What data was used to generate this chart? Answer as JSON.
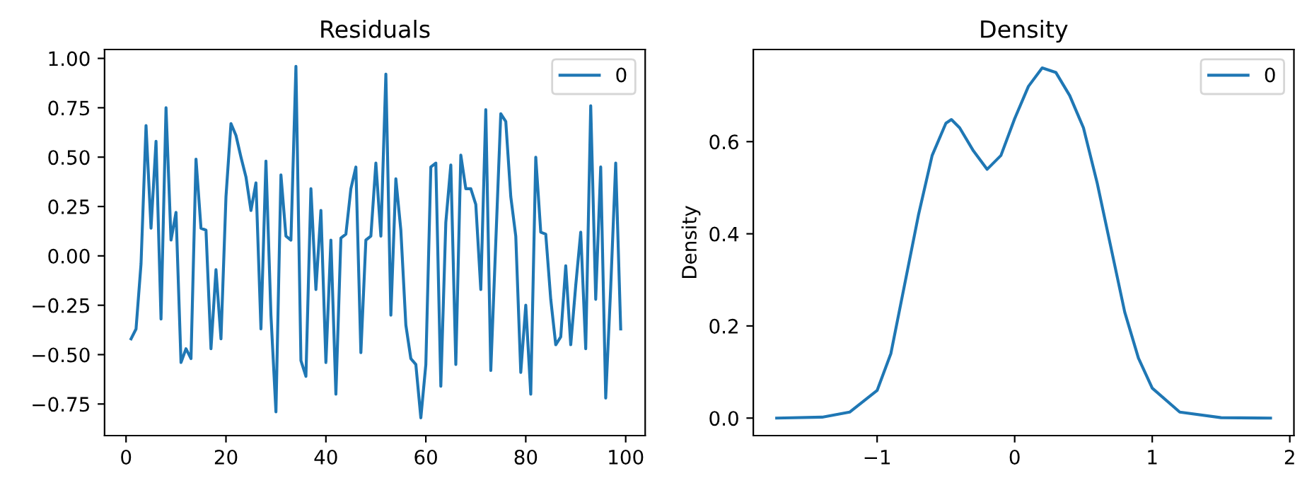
{
  "chart_data": [
    {
      "type": "line",
      "title": "Residuals",
      "legend": "top right",
      "grid": false,
      "x": [
        1,
        2,
        3,
        4,
        5,
        6,
        7,
        8,
        9,
        10,
        11,
        12,
        13,
        14,
        15,
        16,
        17,
        18,
        19,
        20,
        21,
        22,
        23,
        24,
        25,
        26,
        27,
        28,
        29,
        30,
        31,
        32,
        33,
        34,
        35,
        36,
        37,
        38,
        39,
        40,
        41,
        42,
        43,
        44,
        45,
        46,
        47,
        48,
        49,
        50,
        51,
        52,
        53,
        54,
        55,
        56,
        57,
        58,
        59,
        60,
        61,
        62,
        63,
        64,
        65,
        66,
        67,
        68,
        69,
        70,
        71,
        72,
        73,
        74,
        75,
        76,
        77,
        78,
        79,
        80,
        81,
        82,
        83,
        84,
        85,
        86,
        87,
        88,
        89,
        90,
        91,
        92,
        93,
        94,
        95,
        96,
        97,
        98,
        99
      ],
      "series": [
        {
          "name": "0",
          "color": "#1f77b4",
          "values": [
            -0.42,
            -0.37,
            -0.04,
            0.66,
            0.14,
            0.58,
            -0.32,
            0.75,
            0.08,
            0.22,
            -0.54,
            -0.47,
            -0.52,
            0.49,
            0.14,
            0.13,
            -0.47,
            -0.07,
            -0.42,
            0.3,
            0.67,
            0.61,
            0.5,
            0.4,
            0.23,
            0.37,
            -0.37,
            0.48,
            -0.3,
            -0.79,
            0.41,
            0.1,
            0.08,
            0.96,
            -0.53,
            -0.61,
            0.34,
            -0.17,
            0.23,
            -0.54,
            0.08,
            -0.7,
            0.09,
            0.11,
            0.34,
            0.45,
            -0.49,
            0.08,
            0.1,
            0.47,
            0.1,
            0.92,
            -0.3,
            0.39,
            0.13,
            -0.35,
            -0.52,
            -0.55,
            -0.82,
            -0.55,
            0.45,
            0.47,
            -0.66,
            0.17,
            0.46,
            -0.55,
            0.51,
            0.34,
            0.34,
            0.26,
            -0.17,
            0.74,
            -0.58,
            0.07,
            0.72,
            0.68,
            0.3,
            0.1,
            -0.59,
            -0.25,
            -0.7,
            0.5,
            0.12,
            0.11,
            -0.22,
            -0.45,
            -0.41,
            -0.05,
            -0.45,
            -0.15,
            0.12,
            -0.47,
            0.76,
            -0.22,
            0.45,
            -0.72,
            -0.16,
            0.47,
            -0.37
          ]
        }
      ],
      "xlim": [
        -4.3,
        103.9
      ],
      "xticks": [
        0,
        20,
        40,
        60,
        80,
        100
      ],
      "ylim": [
        -0.91,
        1.045
      ],
      "yticks": [
        {
          "value": -0.75,
          "label": "−0.75"
        },
        {
          "value": -0.5,
          "label": "−0.50"
        },
        {
          "value": -0.25,
          "label": "−0.25"
        },
        {
          "value": 0,
          "label": "0.00"
        },
        {
          "value": 0.25,
          "label": "0.25"
        },
        {
          "value": 0.5,
          "label": "0.50"
        },
        {
          "value": 0.75,
          "label": "0.75"
        },
        {
          "value": 1,
          "label": "1.00"
        }
      ]
    },
    {
      "type": "line",
      "title": "Density",
      "ylabel": "Density",
      "legend": "top right",
      "grid": false,
      "x": [
        -1.73,
        -1.4,
        -1.2,
        -1.0,
        -0.9,
        -0.8,
        -0.7,
        -0.6,
        -0.5,
        -0.46,
        -0.4,
        -0.3,
        -0.2,
        -0.1,
        0,
        0.1,
        0.2,
        0.3,
        0.4,
        0.5,
        0.6,
        0.7,
        0.8,
        0.9,
        1.0,
        1.2,
        1.5,
        1.86
      ],
      "series": [
        {
          "name": "0",
          "color": "#1f77b4",
          "values": [
            0,
            0.002,
            0.013,
            0.06,
            0.14,
            0.29,
            0.44,
            0.57,
            0.64,
            0.648,
            0.63,
            0.58,
            0.54,
            0.57,
            0.65,
            0.72,
            0.76,
            0.75,
            0.7,
            0.63,
            0.51,
            0.37,
            0.23,
            0.13,
            0.065,
            0.013,
            0.001,
            0
          ]
        }
      ],
      "xlim": [
        -1.9,
        2.03
      ],
      "xticks": [
        {
          "value": -1,
          "label": "−1"
        },
        0,
        1,
        2
      ],
      "ylim": [
        -0.038,
        0.8
      ],
      "yticks": [
        {
          "value": 0,
          "label": "0.0"
        },
        {
          "value": 0.2,
          "label": "0.2"
        },
        {
          "value": 0.4,
          "label": "0.4"
        },
        {
          "value": 0.6,
          "label": "0.6"
        }
      ]
    }
  ]
}
